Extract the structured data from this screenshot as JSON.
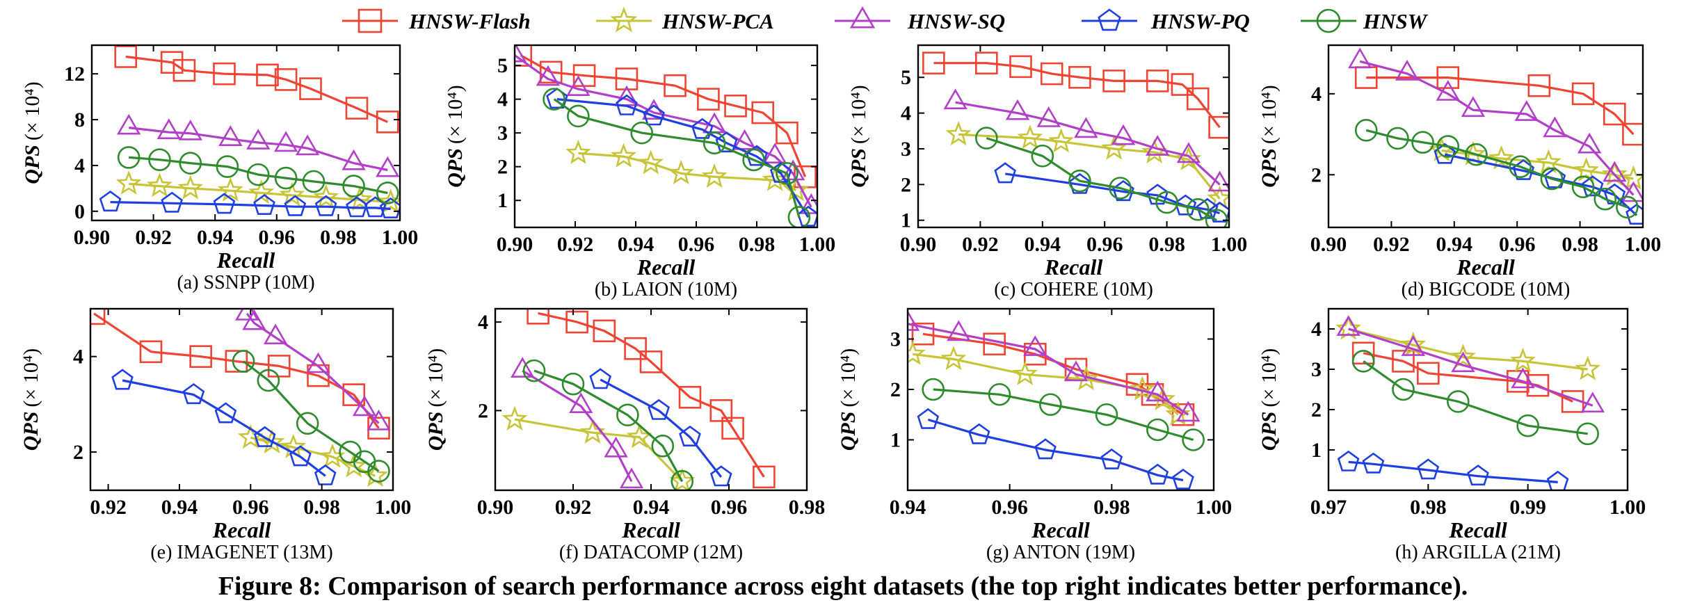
{
  "legend": [
    {
      "name": "HNSW-Flash",
      "color": "#ee4433",
      "marker": "square"
    },
    {
      "name": "HNSW-PCA",
      "color": "#c7c43a",
      "marker": "star"
    },
    {
      "name": "HNSW-SQ",
      "color": "#b23fc7",
      "marker": "triangle"
    },
    {
      "name": "HNSW-PQ",
      "color": "#1f3fe0",
      "marker": "pentagon"
    },
    {
      "name": "HNSW",
      "color": "#2e8b2e",
      "marker": "circle"
    }
  ],
  "caption": "Figure 8: Comparison of search performance across eight datasets (the top right indicates better performance).",
  "chart_data": [
    {
      "type": "line",
      "caption": "(a) SSNPP (10M)",
      "xlabel": "Recall",
      "ylabel": "QPS (× 10⁴)",
      "xlim": [
        0.9,
        1.0
      ],
      "ylim": [
        -0.8,
        14.5
      ],
      "xticks": [
        "0.90",
        "0.92",
        "0.94",
        "0.96",
        "0.98",
        "1.00"
      ],
      "xtickValues": [
        0.9,
        0.92,
        0.94,
        0.96,
        0.98,
        1.0
      ],
      "yticks": [
        "0",
        "4",
        "8",
        "12"
      ],
      "ytickValues": [
        0,
        4,
        8,
        12
      ],
      "series": [
        {
          "name": "HNSW-Flash",
          "x": [
            0.911,
            0.926,
            0.93,
            0.943,
            0.957,
            0.963,
            0.971,
            0.986,
            0.996
          ],
          "y": [
            13.5,
            13.0,
            12.3,
            12.0,
            11.9,
            11.5,
            10.7,
            9.0,
            7.8
          ]
        },
        {
          "name": "HNSW-PCA",
          "x": [
            0.912,
            0.922,
            0.932,
            0.945,
            0.955,
            0.965,
            0.976,
            0.987,
            0.997
          ],
          "y": [
            2.4,
            2.2,
            2.0,
            1.8,
            1.6,
            1.4,
            1.2,
            1.0,
            0.8
          ]
        },
        {
          "name": "HNSW-SQ",
          "x": [
            0.912,
            0.925,
            0.932,
            0.945,
            0.954,
            0.963,
            0.97,
            0.985,
            0.996
          ],
          "y": [
            7.3,
            6.9,
            6.8,
            6.3,
            6.0,
            5.8,
            5.5,
            4.2,
            3.6
          ]
        },
        {
          "name": "HNSW-PQ",
          "x": [
            0.906,
            0.926,
            0.943,
            0.956,
            0.966,
            0.976,
            0.986,
            0.992,
            0.997
          ],
          "y": [
            0.8,
            0.7,
            0.6,
            0.5,
            0.4,
            0.4,
            0.3,
            0.3,
            0.2
          ]
        },
        {
          "name": "HNSW",
          "x": [
            0.912,
            0.922,
            0.932,
            0.944,
            0.954,
            0.963,
            0.972,
            0.985,
            0.996
          ],
          "y": [
            4.7,
            4.5,
            4.2,
            3.9,
            3.2,
            2.9,
            2.6,
            2.2,
            1.6
          ]
        }
      ]
    },
    {
      "type": "line",
      "caption": "(b) LAION (10M)",
      "xlabel": "Recall",
      "ylabel": "QPS (× 10⁴)",
      "xlim": [
        0.9,
        1.0
      ],
      "ylim": [
        0.2,
        5.6
      ],
      "xticks": [
        "0.90",
        "0.92",
        "0.94",
        "0.96",
        "0.98",
        "1.00"
      ],
      "xtickValues": [
        0.9,
        0.92,
        0.94,
        0.96,
        0.98,
        1.0
      ],
      "yticks": [
        "1",
        "2",
        "3",
        "4",
        "5"
      ],
      "ytickValues": [
        1,
        2,
        3,
        4,
        5
      ],
      "series": [
        {
          "name": "HNSW-Flash",
          "x": [
            0.902,
            0.912,
            0.923,
            0.937,
            0.953,
            0.964,
            0.973,
            0.982,
            0.99,
            0.996
          ],
          "y": [
            5.3,
            4.8,
            4.7,
            4.6,
            4.4,
            4.0,
            3.8,
            3.6,
            3.0,
            1.7
          ]
        },
        {
          "name": "HNSW-PCA",
          "x": [
            0.921,
            0.936,
            0.945,
            0.955,
            0.966,
            0.986,
            0.993
          ],
          "y": [
            2.4,
            2.3,
            2.1,
            1.8,
            1.7,
            1.6,
            1.3
          ]
        },
        {
          "name": "HNSW-SQ",
          "x": [
            0.9,
            0.911,
            0.921,
            0.937,
            0.946,
            0.966,
            0.976,
            0.986,
            0.992,
            0.998
          ],
          "y": [
            5.3,
            4.6,
            4.3,
            4.0,
            3.6,
            3.2,
            2.7,
            2.3,
            1.8,
            0.8
          ]
        },
        {
          "name": "HNSW-PQ",
          "x": [
            0.914,
            0.937,
            0.946,
            0.962,
            0.97,
            0.98,
            0.988,
            0.997
          ],
          "y": [
            4.0,
            3.8,
            3.5,
            3.1,
            2.7,
            2.3,
            1.8,
            0.5
          ]
        },
        {
          "name": "HNSW",
          "x": [
            0.913,
            0.921,
            0.942,
            0.966,
            0.979,
            0.99,
            0.994
          ],
          "y": [
            4.0,
            3.5,
            3.0,
            2.7,
            2.2,
            1.8,
            0.5
          ]
        }
      ]
    },
    {
      "type": "line",
      "caption": "(c) COHERE (10M)",
      "xlabel": "Recall",
      "ylabel": "QPS (× 10⁴)",
      "xlim": [
        0.9,
        1.0
      ],
      "ylim": [
        0.8,
        5.9
      ],
      "xticks": [
        "0.90",
        "0.92",
        "0.94",
        "0.96",
        "0.98",
        "1.00"
      ],
      "xtickValues": [
        0.9,
        0.92,
        0.94,
        0.96,
        0.98,
        1.0
      ],
      "yticks": [
        "1",
        "2",
        "3",
        "4",
        "5"
      ],
      "ytickValues": [
        1,
        2,
        3,
        4,
        5
      ],
      "series": [
        {
          "name": "HNSW-Flash",
          "x": [
            0.905,
            0.922,
            0.933,
            0.943,
            0.952,
            0.963,
            0.977,
            0.985,
            0.99,
            0.997
          ],
          "y": [
            5.4,
            5.4,
            5.3,
            5.1,
            5.0,
            4.9,
            4.9,
            4.8,
            4.4,
            3.6
          ]
        },
        {
          "name": "HNSW-PCA",
          "x": [
            0.913,
            0.936,
            0.946,
            0.963,
            0.976,
            0.987,
            0.997
          ],
          "y": [
            3.4,
            3.3,
            3.2,
            3.0,
            2.9,
            2.7,
            1.6
          ]
        },
        {
          "name": "HNSW-SQ",
          "x": [
            0.912,
            0.932,
            0.942,
            0.954,
            0.966,
            0.977,
            0.987,
            0.997
          ],
          "y": [
            4.3,
            4.0,
            3.8,
            3.5,
            3.3,
            3.0,
            2.8,
            2.0
          ]
        },
        {
          "name": "HNSW-PQ",
          "x": [
            0.928,
            0.952,
            0.966,
            0.977,
            0.986,
            0.993,
            0.997
          ],
          "y": [
            2.3,
            2.0,
            1.8,
            1.7,
            1.4,
            1.3,
            1.2
          ]
        },
        {
          "name": "HNSW",
          "x": [
            0.922,
            0.94,
            0.952,
            0.965,
            0.98,
            0.99,
            0.996
          ],
          "y": [
            3.3,
            2.8,
            2.1,
            1.9,
            1.5,
            1.3,
            1.0
          ]
        }
      ]
    },
    {
      "type": "line",
      "caption": "(d) BIGCODE (10M)",
      "xlabel": "Recall",
      "ylabel": "QPS (× 10⁴)",
      "xlim": [
        0.9,
        1.0
      ],
      "ylim": [
        0.7,
        5.2
      ],
      "xticks": [
        "0.90",
        "0.92",
        "0.94",
        "0.96",
        "0.98",
        "1.00"
      ],
      "xtickValues": [
        0.9,
        0.92,
        0.94,
        0.96,
        0.98,
        1.0
      ],
      "yticks": [
        "2",
        "4"
      ],
      "ytickValues": [
        2,
        4
      ],
      "series": [
        {
          "name": "HNSW-Flash",
          "x": [
            0.912,
            0.938,
            0.967,
            0.981,
            0.991,
            0.997
          ],
          "y": [
            4.4,
            4.4,
            4.2,
            4.0,
            3.5,
            3.0
          ]
        },
        {
          "name": "HNSW-PCA",
          "x": [
            0.936,
            0.946,
            0.955,
            0.97,
            0.982,
            0.991,
            0.997
          ],
          "y": [
            2.6,
            2.5,
            2.4,
            2.3,
            2.1,
            2.0,
            1.9
          ]
        },
        {
          "name": "HNSW-SQ",
          "x": [
            0.91,
            0.925,
            0.938,
            0.946,
            0.963,
            0.972,
            0.983,
            0.991,
            0.997
          ],
          "y": [
            4.8,
            4.5,
            4.0,
            3.6,
            3.5,
            3.1,
            2.7,
            2.0,
            1.5
          ]
        },
        {
          "name": "HNSW-PQ",
          "x": [
            0.937,
            0.962,
            0.972,
            0.984,
            0.991,
            0.998
          ],
          "y": [
            2.5,
            2.1,
            1.9,
            1.7,
            1.5,
            1.0
          ]
        },
        {
          "name": "HNSW",
          "x": [
            0.912,
            0.922,
            0.93,
            0.938,
            0.947,
            0.961,
            0.971,
            0.981,
            0.988,
            0.995
          ],
          "y": [
            3.1,
            2.9,
            2.8,
            2.7,
            2.5,
            2.2,
            1.9,
            1.7,
            1.4,
            1.2
          ]
        }
      ]
    },
    {
      "type": "line",
      "caption": "(e) IMAGENET (13M)",
      "xlabel": "Recall",
      "ylabel": "QPS (× 10⁴)",
      "xlim": [
        0.915,
        1.0
      ],
      "ylim": [
        1.2,
        5.0
      ],
      "xticks": [
        "0.92",
        "0.94",
        "0.96",
        "0.98",
        "1.00"
      ],
      "xtickValues": [
        0.92,
        0.94,
        0.96,
        0.98,
        1.0
      ],
      "yticks": [
        "2",
        "4"
      ],
      "ytickValues": [
        2,
        4
      ],
      "series": [
        {
          "name": "HNSW-Flash",
          "x": [
            0.916,
            0.932,
            0.946,
            0.956,
            0.968,
            0.979,
            0.989,
            0.996
          ],
          "y": [
            4.9,
            4.1,
            4.0,
            3.9,
            3.8,
            3.6,
            3.2,
            2.5
          ]
        },
        {
          "name": "HNSW-PCA",
          "x": [
            0.96,
            0.966,
            0.972,
            0.983,
            0.989,
            0.995
          ],
          "y": [
            2.3,
            2.2,
            2.1,
            1.9,
            1.7,
            1.5
          ]
        },
        {
          "name": "HNSW-SQ",
          "x": [
            0.959,
            0.961,
            0.967,
            0.979,
            0.992,
            0.996
          ],
          "y": [
            4.9,
            4.7,
            4.4,
            3.8,
            2.9,
            2.6
          ]
        },
        {
          "name": "HNSW-PQ",
          "x": [
            0.924,
            0.944,
            0.953,
            0.964,
            0.974,
            0.981
          ],
          "y": [
            3.5,
            3.2,
            2.8,
            2.3,
            1.9,
            1.5
          ]
        },
        {
          "name": "HNSW",
          "x": [
            0.958,
            0.965,
            0.976,
            0.988,
            0.992,
            0.996
          ],
          "y": [
            3.9,
            3.5,
            2.6,
            2.0,
            1.8,
            1.6
          ]
        }
      ]
    },
    {
      "type": "line",
      "caption": "(f) DATACOMP (12M)",
      "xlabel": "Recall",
      "ylabel": "QPS (× 10⁴)",
      "xlim": [
        0.9,
        0.98
      ],
      "ylim": [
        0.2,
        4.3
      ],
      "xticks": [
        "0.90",
        "0.92",
        "0.94",
        "0.96",
        "0.98"
      ],
      "xtickValues": [
        0.9,
        0.92,
        0.94,
        0.96,
        0.98
      ],
      "yticks": [
        "2",
        "4"
      ],
      "ytickValues": [
        2,
        4
      ],
      "series": [
        {
          "name": "HNSW-Flash",
          "x": [
            0.911,
            0.921,
            0.928,
            0.936,
            0.94,
            0.95,
            0.958,
            0.961,
            0.969
          ],
          "y": [
            4.2,
            4.0,
            3.8,
            3.4,
            3.1,
            2.3,
            2.0,
            1.6,
            0.5
          ]
        },
        {
          "name": "HNSW-PCA",
          "x": [
            0.905,
            0.925,
            0.937,
            0.948
          ],
          "y": [
            1.8,
            1.5,
            1.4,
            0.4
          ]
        },
        {
          "name": "HNSW-SQ",
          "x": [
            0.907,
            0.922,
            0.931,
            0.935
          ],
          "y": [
            2.9,
            2.1,
            1.1,
            0.4
          ]
        },
        {
          "name": "HNSW-PQ",
          "x": [
            0.927,
            0.942,
            0.95,
            0.958
          ],
          "y": [
            2.7,
            2.0,
            1.4,
            0.5
          ]
        },
        {
          "name": "HNSW",
          "x": [
            0.91,
            0.92,
            0.934,
            0.943,
            0.948
          ],
          "y": [
            2.9,
            2.6,
            1.9,
            1.2,
            0.4
          ]
        }
      ]
    },
    {
      "type": "line",
      "caption": "(g) ANTON (19M)",
      "xlabel": "Recall",
      "ylabel": "QPS (× 10⁴)",
      "xlim": [
        0.94,
        1.0
      ],
      "ylim": [
        0.0,
        3.6
      ],
      "xticks": [
        "0.94",
        "0.96",
        "0.98",
        "1.00"
      ],
      "xtickValues": [
        0.94,
        0.96,
        0.98,
        1.0
      ],
      "yticks": [
        "1",
        "2",
        "3"
      ],
      "ytickValues": [
        1,
        2,
        3
      ],
      "series": [
        {
          "name": "HNSW-Flash",
          "x": [
            0.943,
            0.957,
            0.965,
            0.973,
            0.985,
            0.988,
            0.994
          ],
          "y": [
            3.1,
            2.9,
            2.7,
            2.4,
            2.1,
            1.9,
            1.5
          ]
        },
        {
          "name": "HNSW-PCA",
          "x": [
            0.941,
            0.949,
            0.963,
            0.975,
            0.986,
            0.99,
            0.993
          ],
          "y": [
            2.7,
            2.6,
            2.3,
            2.2,
            2.0,
            1.8,
            1.5
          ]
        },
        {
          "name": "HNSW-SQ",
          "x": [
            0.94,
            0.95,
            0.965,
            0.973,
            0.989,
            0.995
          ],
          "y": [
            3.3,
            3.1,
            2.8,
            2.3,
            1.9,
            1.5
          ]
        },
        {
          "name": "HNSW-PQ",
          "x": [
            0.944,
            0.954,
            0.967,
            0.98,
            0.989,
            0.994
          ],
          "y": [
            1.4,
            1.1,
            0.8,
            0.6,
            0.3,
            0.2
          ]
        },
        {
          "name": "HNSW",
          "x": [
            0.945,
            0.958,
            0.968,
            0.979,
            0.989,
            0.996
          ],
          "y": [
            2.0,
            1.9,
            1.7,
            1.5,
            1.2,
            1.0
          ]
        }
      ]
    },
    {
      "type": "line",
      "caption": "(h) ARGILLA (21M)",
      "xlabel": "Recall",
      "ylabel": "QPS (× 10⁴)",
      "xlim": [
        0.97,
        1.0
      ],
      "ylim": [
        0.0,
        4.5
      ],
      "xticks": [
        "0.97",
        "0.98",
        "0.99",
        "1.00"
      ],
      "xtickValues": [
        0.97,
        0.98,
        0.99,
        1.0
      ],
      "yticks": [
        "1",
        "2",
        "3",
        "4"
      ],
      "ytickValues": [
        1,
        2,
        3,
        4
      ],
      "series": [
        {
          "name": "HNSW-Flash",
          "x": [
            0.9735,
            0.9775,
            0.98,
            0.989,
            0.991,
            0.9945
          ],
          "y": [
            3.4,
            3.2,
            2.9,
            2.7,
            2.6,
            2.2
          ]
        },
        {
          "name": "HNSW-PCA",
          "x": [
            0.972,
            0.9785,
            0.9835,
            0.9895,
            0.996
          ],
          "y": [
            4.0,
            3.6,
            3.3,
            3.2,
            3.0
          ]
        },
        {
          "name": "HNSW-SQ",
          "x": [
            0.972,
            0.9785,
            0.9835,
            0.9895,
            0.9965
          ],
          "y": [
            4.0,
            3.5,
            3.1,
            2.7,
            2.1
          ]
        },
        {
          "name": "HNSW-PQ",
          "x": [
            0.972,
            0.9745,
            0.98,
            0.985,
            0.993
          ],
          "y": [
            0.7,
            0.65,
            0.5,
            0.35,
            0.2
          ]
        },
        {
          "name": "HNSW",
          "x": [
            0.9735,
            0.9775,
            0.983,
            0.99,
            0.996
          ],
          "y": [
            3.2,
            2.5,
            2.2,
            1.6,
            1.4
          ]
        }
      ]
    }
  ]
}
